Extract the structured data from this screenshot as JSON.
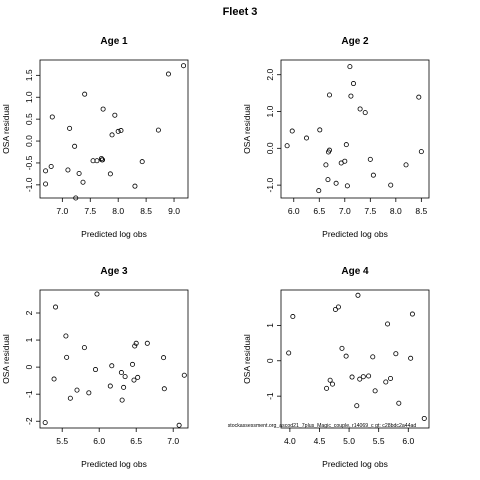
{
  "title": "Fleet 3",
  "footnote": "stockassessment.org_ascod21_7plus_Magic_couple, r14069_c gt: c28bdc2a44ad",
  "chart_data": [
    {
      "type": "scatter",
      "title": "Age 1",
      "xlabel": "Predicted log obs",
      "ylabel": "OSA residual",
      "xlim": [
        6.6,
        9.25
      ],
      "ylim": [
        -1.3,
        1.85
      ],
      "xticks": [
        "7.0",
        "7.5",
        "8.0",
        "8.5",
        "9.0"
      ],
      "yticks": [
        "-1.0",
        "-0.5",
        "0.0",
        "0.5",
        "1.0",
        "1.5"
      ],
      "x": [
        6.7,
        6.7,
        6.8,
        6.82,
        7.1,
        7.13,
        7.22,
        7.24,
        7.3,
        7.37,
        7.4,
        7.55,
        7.62,
        7.7,
        7.71,
        7.72,
        7.73,
        7.86,
        7.89,
        7.94,
        8.0,
        8.05,
        8.3,
        8.43,
        8.72,
        8.9,
        9.17
      ],
      "y": [
        -0.98,
        -0.68,
        -0.58,
        0.55,
        -0.66,
        0.29,
        -0.12,
        -1.3,
        -0.74,
        -0.94,
        1.07,
        -0.45,
        -0.45,
        -0.4,
        -0.43,
        -0.43,
        0.73,
        -0.75,
        0.14,
        0.59,
        0.22,
        0.24,
        -1.03,
        -0.47,
        0.25,
        1.53,
        1.72
      ]
    },
    {
      "type": "scatter",
      "title": "Age 2",
      "xlabel": "Predicted log obs",
      "ylabel": "OSA residual",
      "xlim": [
        5.75,
        8.65
      ],
      "ylim": [
        -1.35,
        2.4
      ],
      "xticks": [
        "6.0",
        "6.5",
        "7.0",
        "7.5",
        "8.0",
        "8.5"
      ],
      "yticks": [
        "-1.0",
        "0.0",
        "1.0",
        "2.0"
      ],
      "x": [
        5.87,
        5.97,
        6.25,
        6.51,
        6.49,
        6.63,
        6.67,
        6.68,
        6.7,
        6.7,
        6.83,
        6.93,
        7.0,
        7.03,
        7.05,
        7.1,
        7.12,
        7.17,
        7.3,
        7.4,
        7.5,
        7.56,
        7.9,
        8.2,
        8.45,
        8.5
      ],
      "y": [
        0.07,
        0.47,
        0.28,
        0.5,
        -1.15,
        -0.45,
        -0.85,
        -0.1,
        -0.05,
        1.45,
        -0.95,
        -0.4,
        -0.35,
        0.1,
        -1.02,
        2.22,
        1.42,
        1.76,
        1.07,
        0.97,
        -0.3,
        -0.73,
        -1.0,
        -0.45,
        1.39,
        -0.09
      ]
    },
    {
      "type": "scatter",
      "title": "Age 3",
      "xlabel": "Predicted log obs",
      "ylabel": "OSA residual",
      "xlim": [
        5.2,
        7.2
      ],
      "ylim": [
        -2.25,
        2.85
      ],
      "xticks": [
        "5.5",
        "6.0",
        "6.5",
        "7.0"
      ],
      "yticks": [
        "-2",
        "-1",
        "0",
        "1",
        "2"
      ],
      "x": [
        5.27,
        5.39,
        5.41,
        5.55,
        5.56,
        5.61,
        5.7,
        5.8,
        5.86,
        5.95,
        5.97,
        6.15,
        6.17,
        6.3,
        6.31,
        6.33,
        6.35,
        6.45,
        6.47,
        6.48,
        6.5,
        6.52,
        6.65,
        6.87,
        6.88,
        7.08,
        7.15
      ],
      "y": [
        -2.05,
        -0.44,
        2.22,
        1.15,
        0.36,
        -1.15,
        -0.85,
        0.72,
        -0.95,
        -0.09,
        2.7,
        -0.7,
        0.05,
        -0.2,
        -1.22,
        -0.75,
        -0.35,
        0.1,
        -0.48,
        0.78,
        0.88,
        -0.38,
        0.88,
        0.35,
        -0.8,
        -2.15,
        -0.3
      ]
    },
    {
      "type": "scatter",
      "title": "Age 4",
      "xlabel": "Predicted log obs",
      "ylabel": "OSA residual",
      "xlim": [
        3.85,
        6.35
      ],
      "ylim": [
        -1.9,
        2.0
      ],
      "xticks": [
        "4.0",
        "4.5",
        "5.0",
        "5.5",
        "6.0"
      ],
      "yticks": [
        "-1",
        "0",
        "1"
      ],
      "x": [
        3.98,
        4.05,
        4.62,
        4.68,
        4.72,
        4.77,
        4.82,
        4.88,
        4.95,
        5.05,
        5.13,
        5.15,
        5.18,
        5.24,
        5.33,
        5.4,
        5.44,
        5.62,
        5.65,
        5.7,
        5.79,
        5.84,
        6.04,
        6.07,
        6.27
      ],
      "y": [
        0.22,
        1.25,
        -0.78,
        -0.55,
        -0.66,
        1.45,
        1.52,
        0.35,
        0.13,
        -0.46,
        -1.27,
        1.85,
        -0.52,
        -0.45,
        -0.43,
        0.11,
        -0.85,
        -0.6,
        1.04,
        -0.5,
        0.2,
        -1.2,
        0.07,
        1.32,
        -1.63
      ]
    }
  ]
}
